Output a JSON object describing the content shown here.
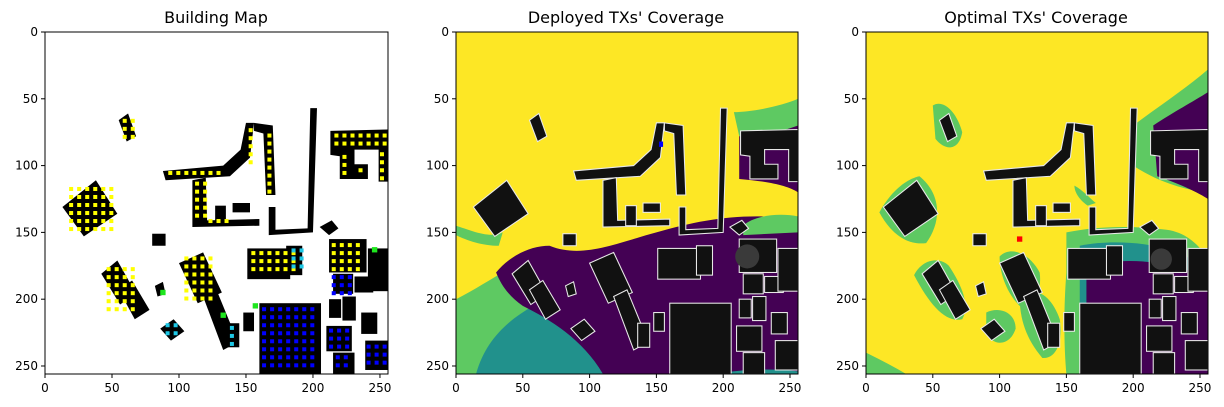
{
  "chart_data": [
    {
      "type": "heatmap",
      "title": "Building Map",
      "xlabel": "",
      "ylabel": "",
      "xlim": [
        0,
        256
      ],
      "ylim": [
        256,
        0
      ],
      "xticks": [
        "0",
        "50",
        "100",
        "150",
        "200",
        "250"
      ],
      "yticks": [
        "0",
        "50",
        "100",
        "150",
        "200",
        "250"
      ],
      "background": "#ffffff",
      "colors": {
        "building": "#000000",
        "marker_yellow": "#ffff00",
        "marker_blue": "#0000ff",
        "marker_cyan": "#1ec8e6",
        "marker_green": "#1ee61e"
      }
    },
    {
      "type": "heatmap",
      "title": "Deployed TXs' Coverage",
      "xlabel": "",
      "ylabel": "",
      "xlim": [
        0,
        256
      ],
      "ylim": [
        256,
        0
      ],
      "xticks": [
        "0",
        "50",
        "100",
        "150",
        "200",
        "250"
      ],
      "yticks": [
        "0",
        "50",
        "100",
        "150",
        "200",
        "250"
      ],
      "colormap": "viridis",
      "colors": {
        "high": "#fde725",
        "mid_high": "#5ec962",
        "mid": "#21918c",
        "low": "#440154",
        "building": "#111111",
        "tx_marker": "#0000ff"
      }
    },
    {
      "type": "heatmap",
      "title": "Optimal TXs' Coverage",
      "xlabel": "",
      "ylabel": "",
      "xlim": [
        0,
        256
      ],
      "ylim": [
        256,
        0
      ],
      "xticks": [
        "0",
        "50",
        "100",
        "150",
        "200",
        "250"
      ],
      "yticks": [
        "0",
        "50",
        "100",
        "150",
        "200",
        "250"
      ],
      "colormap": "viridis",
      "colors": {
        "high": "#fde725",
        "mid_high": "#5ec962",
        "mid": "#21918c",
        "low": "#440154",
        "building": "#111111",
        "tx_marker": "#ff0000"
      }
    }
  ]
}
